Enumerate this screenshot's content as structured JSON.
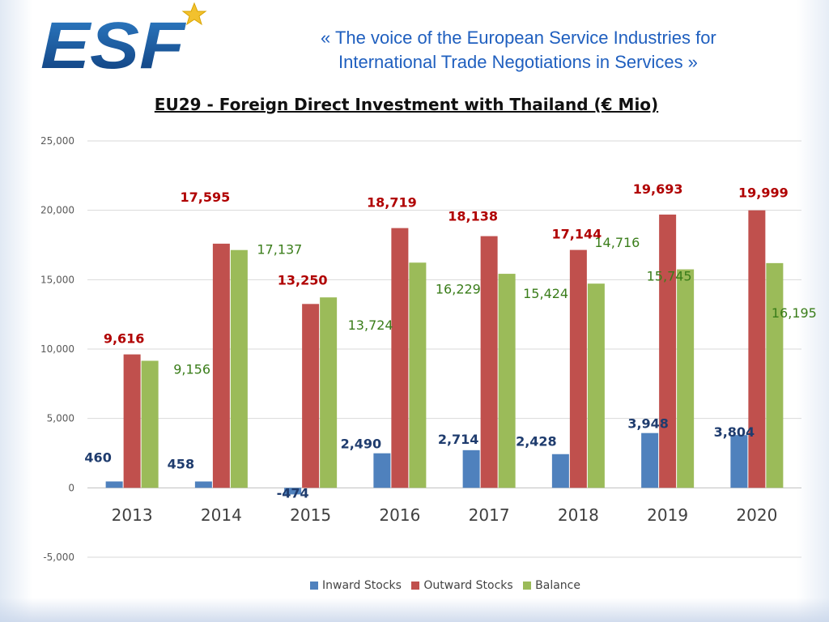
{
  "header": {
    "logo_text": "ESF",
    "tagline_line1": "« The voice of the European Service Industries for",
    "tagline_line2": "International Trade Negotiations in Services »"
  },
  "colors": {
    "inward": "#4f81bd",
    "outward": "#c0504d",
    "balance": "#9bbb59",
    "inward_label": "#1f3c6e",
    "outward_label": "#b00000",
    "balance_label": "#3a7d1a",
    "tagline": "#1f5fbf"
  },
  "chart_data": {
    "type": "bar",
    "title": "EU29 - Foreign Direct Investment with Thailand (€ Mio)",
    "categories": [
      "2013",
      "2014",
      "2015",
      "2016",
      "2017",
      "2018",
      "2019",
      "2020"
    ],
    "series": [
      {
        "name": "Inward Stocks",
        "values": [
          460,
          458,
          -474,
          2490,
          2714,
          2428,
          3948,
          3804
        ],
        "labels": [
          "460",
          "458",
          "-474",
          "2,490",
          "2,714",
          "2,428",
          "3,948",
          "3,804"
        ]
      },
      {
        "name": "Outward Stocks",
        "values": [
          9616,
          17595,
          13250,
          18719,
          18138,
          17144,
          19693,
          19999
        ],
        "labels": [
          "9,616",
          "17,595",
          "13,250",
          "18,719",
          "18,138",
          "17,144",
          "19,693",
          "19,999"
        ]
      },
      {
        "name": "Balance",
        "values": [
          9156,
          17137,
          13724,
          16229,
          15424,
          14716,
          15745,
          16195
        ],
        "labels": [
          "9,156",
          "17,137",
          "13,724",
          "16,229",
          "15,424",
          "14,716",
          "15,745",
          "16,195"
        ]
      }
    ],
    "y_ticks": [
      "25,000",
      "20,000",
      "15,000",
      "10,000",
      "5,000",
      "0",
      "-5,000"
    ],
    "ylim": [
      -5000,
      25000
    ],
    "grid": true,
    "legend_position": "bottom"
  }
}
